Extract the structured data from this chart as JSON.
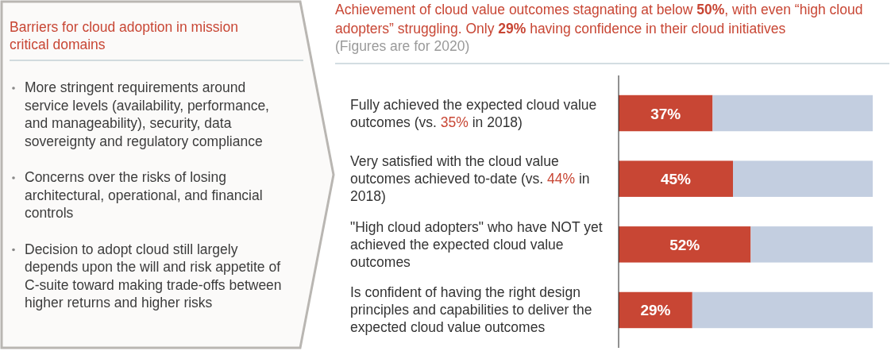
{
  "chart_data": [
    {
      "type": "other",
      "title": "Barriers for cloud adoption in mission critical domains",
      "annotations": [
        "More stringent requirements around service levels (availability, performance, and manageability), security, data sovereignty and regulatory compliance",
        "Concerns over the risks of losing architectural, operational, and financial controls",
        "Decision to adopt cloud still largely depends upon the will and risk appetite of C-suite toward making trade-offs between higher returns and higher risks"
      ]
    },
    {
      "type": "bar",
      "orientation": "horizontal",
      "stacked": true,
      "title": "Achievement of cloud value outcomes stagnating at below 50%, with even “high cloud adopters” struggling.  Only 29% having confidence in their cloud initiatives",
      "subtitle": "(Figures are for 2020)",
      "categories": [
        "Fully achieved the expected cloud value outcomes (vs. 35% in 2018)",
        "Very satisfied with the cloud value outcomes achieved to-date (vs. 44% in 2018)",
        "\"High cloud adopters\" who have NOT yet achieved the expected cloud value outcomes",
        "Is confident of having the right design principles and capabilities to deliver the expected cloud value outcomes"
      ],
      "series": [
        {
          "color": "#c84634",
          "values": [
            37,
            45,
            52,
            29
          ],
          "value_labels": [
            "37%",
            "45%",
            "52%",
            "29%"
          ]
        },
        {
          "color": "#c3cee0",
          "values": [
            63,
            55,
            48,
            71
          ]
        }
      ],
      "xlim": [
        0,
        100
      ],
      "tick_labels": "y"
    }
  ]
}
